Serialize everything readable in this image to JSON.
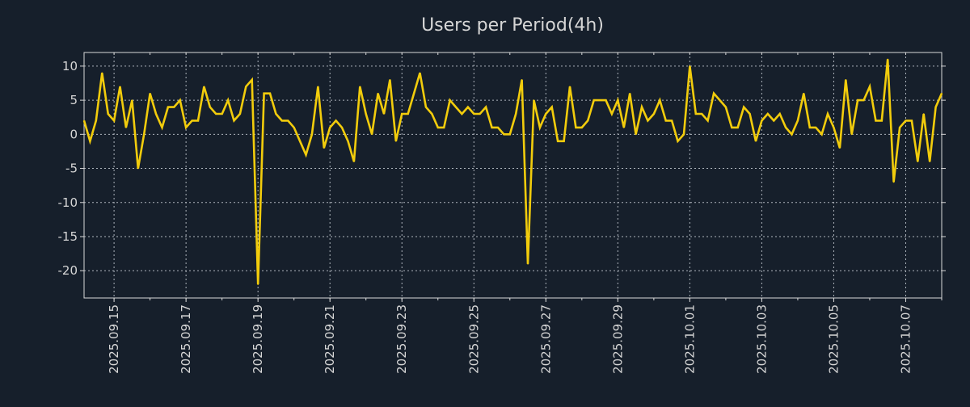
{
  "chart_data": {
    "type": "line",
    "title": "Users per Period(4h)",
    "xlabel": "",
    "ylabel": "",
    "x_start": "2025-09-14T04:00",
    "step_hours": 4,
    "ylim": [
      -24,
      12
    ],
    "yticks": [
      10,
      5,
      0,
      -5,
      -10,
      -15,
      -20
    ],
    "xticks": [
      "2025.09.15",
      "2025.09.17",
      "2025.09.19",
      "2025.09.21",
      "2025.09.23",
      "2025.09.25",
      "2025.09.27",
      "2025.09.29",
      "2025.10.01",
      "2025.10.03",
      "2025.10.05",
      "2025.10.07"
    ],
    "grid": true,
    "line_color": "#f2cc0c",
    "series": [
      {
        "name": "Users",
        "values": [
          2,
          -1,
          2,
          9,
          3,
          2,
          7,
          1,
          5,
          -5,
          0,
          6,
          3,
          1,
          4,
          4,
          5,
          1,
          2,
          2,
          7,
          4,
          3,
          3,
          5,
          2,
          3,
          7,
          8,
          -22,
          6,
          6,
          3,
          2,
          2,
          1,
          -1,
          -3,
          0,
          7,
          -2,
          1,
          2,
          1,
          -1,
          -4,
          7,
          3,
          0,
          6,
          3,
          8,
          -1,
          3,
          3,
          6,
          9,
          4,
          3,
          1,
          1,
          5,
          4,
          3,
          4,
          3,
          3,
          4,
          1,
          1,
          0,
          0,
          3,
          8,
          -19,
          5,
          1,
          3,
          4,
          -1,
          -1,
          7,
          1,
          1,
          2,
          5,
          5,
          5,
          3,
          5,
          1,
          6,
          0,
          4,
          2,
          3,
          5,
          2,
          2,
          -1,
          0,
          10,
          3,
          3,
          2,
          6,
          5,
          4,
          1,
          1,
          4,
          3,
          -1,
          2,
          3,
          2,
          3,
          1,
          0,
          2,
          6,
          1,
          1,
          0,
          3,
          1,
          -2,
          8,
          0,
          5,
          5,
          7,
          2,
          2,
          11,
          -7,
          1,
          2,
          2,
          -4,
          3,
          -4,
          4,
          6
        ]
      }
    ]
  }
}
